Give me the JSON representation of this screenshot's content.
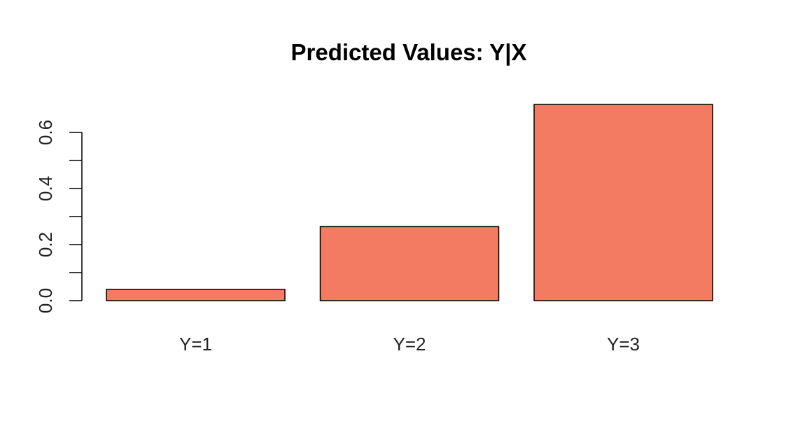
{
  "chart_data": {
    "type": "bar",
    "title": "Predicted Values: Y|X",
    "xlabel": "",
    "ylabel": "",
    "categories": [
      "Y=1",
      "Y=2",
      "Y=3"
    ],
    "values": [
      0.04,
      0.264,
      0.7
    ],
    "ylim": [
      0,
      0.7
    ],
    "yticks_major": [
      0.0,
      0.2,
      0.4,
      0.6
    ],
    "ytick_labels": [
      "0.0",
      "0.2",
      "0.4",
      "0.6"
    ],
    "yticks_minor": [
      0.1,
      0.3,
      0.5
    ],
    "grid": false,
    "legend": "none",
    "colors": {
      "bar_fill": "#f27b61",
      "bar_stroke": "#000000",
      "axis": "#000000"
    }
  }
}
